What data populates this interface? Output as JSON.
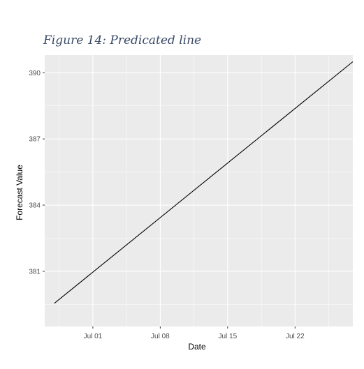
{
  "figure": {
    "title": "Figure 14: Predicated line"
  },
  "chart_data": {
    "type": "line",
    "title": "",
    "xlabel": "Date",
    "ylabel": "Forecast Value",
    "x_ticks": [
      "Jul 01",
      "Jul 08",
      "Jul 15",
      "Jul 22"
    ],
    "y_ticks": [
      381,
      384,
      387,
      390
    ],
    "xlim": [
      "2023-06-26",
      "2023-07-28"
    ],
    "ylim": [
      378.5,
      390.8
    ],
    "grid": true,
    "colors": {
      "panel": "#ebebeb",
      "grid": "#ffffff",
      "line": "#000000"
    },
    "series": [
      {
        "x": [
          "2023-06-27",
          "2023-07-28"
        ],
        "y": [
          379.55,
          390.5
        ]
      }
    ]
  }
}
